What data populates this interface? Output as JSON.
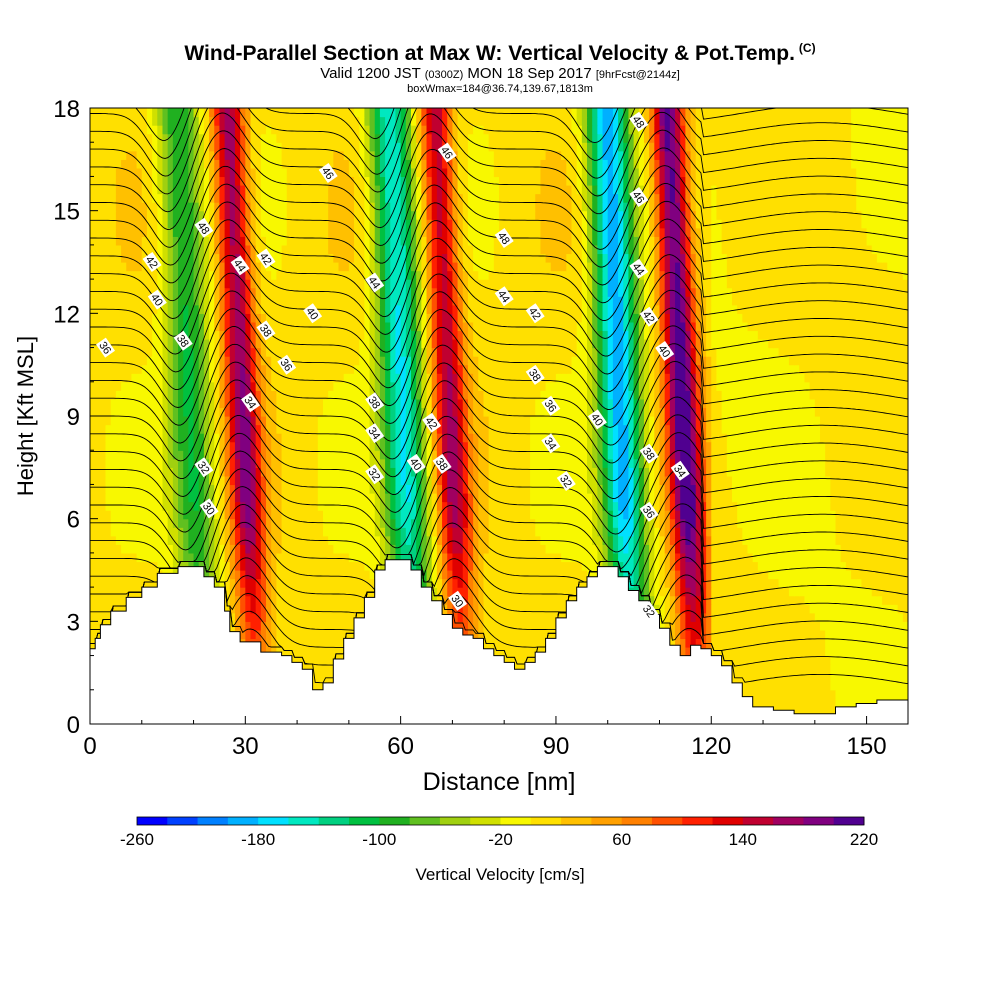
{
  "header": {
    "title": "Wind-Parallel Section at Max W: Vertical Velocity & Pot.Temp.",
    "copyright_mark": "(C)",
    "valid_prefix": "Valid 1200 JST",
    "valid_utc": "(0300Z)",
    "valid_date": "MON 18 Sep 2017",
    "forecast_info": "[9hrFcst@2144z]",
    "box_info": "boxWmax=184@36.74,139.67,1813m"
  },
  "chart_data": {
    "type": "heatmap",
    "title": "Wind-Parallel Section at Max W: Vertical Velocity & Pot.Temp.",
    "xlabel": "Distance [nm]",
    "ylabel": "Height [Kft MSL]",
    "xlim": [
      0,
      158
    ],
    "ylim": [
      0,
      18
    ],
    "x_ticks": [
      0,
      30,
      60,
      90,
      120,
      150
    ],
    "y_ticks": [
      0,
      3,
      6,
      9,
      12,
      15,
      18
    ],
    "colorbar": {
      "label": "Vertical Velocity [cm/s]",
      "min": -260,
      "max": 220,
      "step": 20,
      "tick_labels": [
        "-260",
        "-180",
        "-100",
        "-20",
        "60",
        "140",
        "220"
      ],
      "tick_values": [
        -260,
        -180,
        -100,
        -20,
        60,
        140,
        220
      ],
      "colors": [
        "#0000ff",
        "#0040ff",
        "#0080ff",
        "#00b0ff",
        "#00e0ff",
        "#00e8c0",
        "#00d080",
        "#00c040",
        "#20b020",
        "#60c020",
        "#a0d010",
        "#d0e000",
        "#f8f800",
        "#ffe000",
        "#ffc000",
        "#ffa000",
        "#ff8000",
        "#ff5000",
        "#ff2000",
        "#e00000",
        "#c00030",
        "#a00060",
        "#800080",
        "#500090"
      ]
    },
    "terrain_height_kft": [
      [
        0,
        2.2
      ],
      [
        1,
        2.5
      ],
      [
        2,
        2.9
      ],
      [
        4,
        3.3
      ],
      [
        7,
        3.7
      ],
      [
        10,
        4.0
      ],
      [
        13,
        4.4
      ],
      [
        17,
        4.6
      ],
      [
        20,
        4.6
      ],
      [
        22,
        4.3
      ],
      [
        24,
        4.0
      ],
      [
        26,
        3.3
      ],
      [
        27,
        2.7
      ],
      [
        29,
        2.4
      ],
      [
        33,
        2.1
      ],
      [
        37,
        2.0
      ],
      [
        39,
        1.8
      ],
      [
        41,
        1.6
      ],
      [
        43,
        1.0
      ],
      [
        45,
        1.2
      ],
      [
        47,
        1.9
      ],
      [
        49,
        2.5
      ],
      [
        51,
        3.1
      ],
      [
        53,
        3.7
      ],
      [
        55,
        4.5
      ],
      [
        57,
        4.8
      ],
      [
        60,
        4.8
      ],
      [
        62,
        4.5
      ],
      [
        64,
        4.0
      ],
      [
        66,
        3.6
      ],
      [
        68,
        3.2
      ],
      [
        70,
        2.8
      ],
      [
        72,
        2.6
      ],
      [
        74,
        2.5
      ],
      [
        76,
        2.2
      ],
      [
        78,
        2.0
      ],
      [
        80,
        1.8
      ],
      [
        82,
        1.6
      ],
      [
        84,
        1.8
      ],
      [
        86,
        2.1
      ],
      [
        88,
        2.5
      ],
      [
        90,
        3.1
      ],
      [
        92,
        3.6
      ],
      [
        94,
        4.0
      ],
      [
        96,
        4.3
      ],
      [
        98,
        4.6
      ],
      [
        100,
        4.6
      ],
      [
        102,
        4.3
      ],
      [
        104,
        3.9
      ],
      [
        106,
        3.6
      ],
      [
        108,
        3.2
      ],
      [
        110,
        2.8
      ],
      [
        112,
        2.3
      ],
      [
        114,
        2.0
      ],
      [
        116,
        2.3
      ],
      [
        118,
        2.2
      ],
      [
        120,
        2.0
      ],
      [
        122,
        1.7
      ],
      [
        124,
        1.2
      ],
      [
        126,
        0.8
      ],
      [
        128,
        0.5
      ],
      [
        132,
        0.4
      ],
      [
        136,
        0.3
      ],
      [
        140,
        0.3
      ],
      [
        144,
        0.5
      ],
      [
        148,
        0.6
      ],
      [
        152,
        0.7
      ],
      [
        158,
        0.7
      ]
    ],
    "updrafts": [
      {
        "x_center": 29,
        "peak": 170
      },
      {
        "x_center": 69,
        "peak": 150
      },
      {
        "x_center": 114,
        "peak": 210
      }
    ],
    "downdrafts": [
      {
        "x_center": 19,
        "peak": -110
      },
      {
        "x_center": 60,
        "peak": -170
      },
      {
        "x_center": 102,
        "peak": -200
      }
    ],
    "theta_labels": [
      {
        "text": "30",
        "x": 23,
        "y": 6.3
      },
      {
        "text": "32",
        "x": 22,
        "y": 7.5
      },
      {
        "text": "38",
        "x": 18,
        "y": 11.2
      },
      {
        "text": "40",
        "x": 13,
        "y": 12.4
      },
      {
        "text": "42",
        "x": 12,
        "y": 13.5
      },
      {
        "text": "48",
        "x": 22,
        "y": 14.5
      },
      {
        "text": "36",
        "x": 3,
        "y": 11.0
      },
      {
        "text": "44",
        "x": 29,
        "y": 13.4
      },
      {
        "text": "42",
        "x": 34,
        "y": 13.6
      },
      {
        "text": "38",
        "x": 34,
        "y": 11.5
      },
      {
        "text": "36",
        "x": 38,
        "y": 10.5
      },
      {
        "text": "34",
        "x": 31,
        "y": 9.4
      },
      {
        "text": "40",
        "x": 43,
        "y": 12.0
      },
      {
        "text": "46",
        "x": 46,
        "y": 16.1
      },
      {
        "text": "44",
        "x": 55,
        "y": 12.9
      },
      {
        "text": "38",
        "x": 55,
        "y": 9.4
      },
      {
        "text": "34",
        "x": 55,
        "y": 8.5
      },
      {
        "text": "32",
        "x": 55,
        "y": 7.3
      },
      {
        "text": "42",
        "x": 66,
        "y": 8.8
      },
      {
        "text": "40",
        "x": 63,
        "y": 7.6
      },
      {
        "text": "38",
        "x": 68,
        "y": 7.6
      },
      {
        "text": "30",
        "x": 71,
        "y": 3.6
      },
      {
        "text": "46",
        "x": 69,
        "y": 16.7
      },
      {
        "text": "48",
        "x": 80,
        "y": 14.2
      },
      {
        "text": "44",
        "x": 80,
        "y": 12.5
      },
      {
        "text": "42",
        "x": 86,
        "y": 12.0
      },
      {
        "text": "38",
        "x": 86,
        "y": 10.2
      },
      {
        "text": "36",
        "x": 89,
        "y": 9.3
      },
      {
        "text": "34",
        "x": 89,
        "y": 8.2
      },
      {
        "text": "32",
        "x": 92,
        "y": 7.1
      },
      {
        "text": "40",
        "x": 98,
        "y": 8.9
      },
      {
        "text": "48",
        "x": 106,
        "y": 17.6
      },
      {
        "text": "46",
        "x": 106,
        "y": 15.4
      },
      {
        "text": "44",
        "x": 106,
        "y": 13.3
      },
      {
        "text": "42",
        "x": 108,
        "y": 11.9
      },
      {
        "text": "40",
        "x": 111,
        "y": 10.9
      },
      {
        "text": "38",
        "x": 108,
        "y": 7.9
      },
      {
        "text": "36",
        "x": 108,
        "y": 6.2
      },
      {
        "text": "34",
        "x": 114,
        "y": 7.4
      },
      {
        "text": "32",
        "x": 108,
        "y": 3.3
      }
    ]
  }
}
